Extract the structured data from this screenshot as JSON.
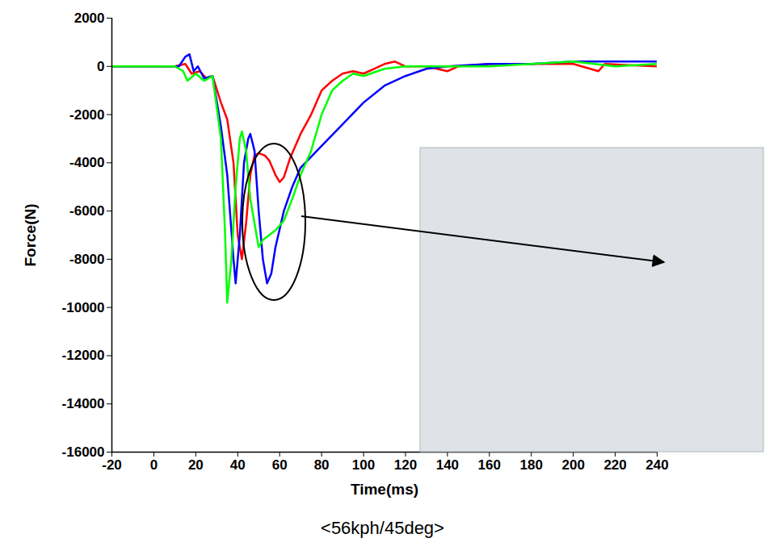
{
  "chart_data": {
    "type": "line",
    "caption": "<56kph/45deg>",
    "x_label": "Time(ms)",
    "y_label": "Force(N)",
    "xlim": [
      -20,
      240
    ],
    "xticks": [
      -20,
      0,
      20,
      40,
      60,
      80,
      100,
      120,
      140,
      160,
      180,
      200,
      220,
      240
    ],
    "ylim": [
      -16000,
      2000
    ],
    "yticks": [
      -16000,
      -14000,
      -12000,
      -10000,
      -8000,
      -6000,
      -4000,
      -2000,
      0,
      2000
    ],
    "grid": false,
    "series": [
      {
        "color": "#ff0000",
        "x": [
          -20,
          10,
          15,
          18,
          22,
          25,
          28,
          32,
          35,
          38,
          40,
          42,
          44,
          46,
          48,
          50,
          53,
          55,
          58,
          60,
          62,
          65,
          70,
          75,
          80,
          85,
          90,
          95,
          100,
          105,
          110,
          115,
          120,
          130,
          140,
          145,
          160,
          180,
          200,
          212,
          215,
          240
        ],
        "values": [
          0,
          0,
          100,
          -300,
          -200,
          -500,
          -400,
          -1500,
          -2200,
          -4000,
          -7000,
          -8000,
          -6500,
          -4500,
          -3700,
          -3600,
          -3700,
          -3900,
          -4500,
          -4800,
          -4600,
          -3800,
          -2800,
          -2000,
          -1000,
          -600,
          -300,
          -200,
          -300,
          -100,
          100,
          200,
          0,
          0,
          -200,
          0,
          100,
          100,
          100,
          -200,
          100,
          0
        ]
      },
      {
        "color": "#0000ff",
        "x": [
          -20,
          12,
          15,
          17,
          19,
          21,
          24,
          28,
          32,
          35,
          38,
          39,
          41,
          43,
          45,
          46,
          48,
          50,
          52,
          54,
          56,
          58,
          62,
          66,
          70,
          80,
          90,
          100,
          110,
          120,
          130,
          140,
          160,
          180,
          200,
          220,
          240
        ],
        "values": [
          0,
          0,
          400,
          500,
          -200,
          0,
          -500,
          -400,
          -2500,
          -4500,
          -8000,
          -9000,
          -7000,
          -4000,
          -3000,
          -2800,
          -3500,
          -6000,
          -8000,
          -9000,
          -8600,
          -7500,
          -6000,
          -5000,
          -4200,
          -3300,
          -2400,
          -1500,
          -800,
          -400,
          -100,
          0,
          100,
          100,
          200,
          200,
          200
        ]
      },
      {
        "color": "#00ff00",
        "x": [
          -20,
          10,
          14,
          16,
          20,
          24,
          28,
          32,
          34,
          35,
          37,
          39,
          41,
          42,
          44,
          46,
          48,
          50,
          52,
          55,
          58,
          62,
          66,
          70,
          75,
          80,
          85,
          90,
          95,
          100,
          110,
          120,
          140,
          160,
          180,
          200,
          220,
          240
        ],
        "values": [
          0,
          0,
          -200,
          -600,
          -300,
          -600,
          -400,
          -3000,
          -7000,
          -9800,
          -8000,
          -5000,
          -3000,
          -2700,
          -3500,
          -5500,
          -6500,
          -7500,
          -7200,
          -7000,
          -6800,
          -6400,
          -5500,
          -4500,
          -3500,
          -2000,
          -1000,
          -600,
          -300,
          -400,
          -100,
          0,
          0,
          0,
          100,
          200,
          0,
          100
        ]
      }
    ]
  }
}
